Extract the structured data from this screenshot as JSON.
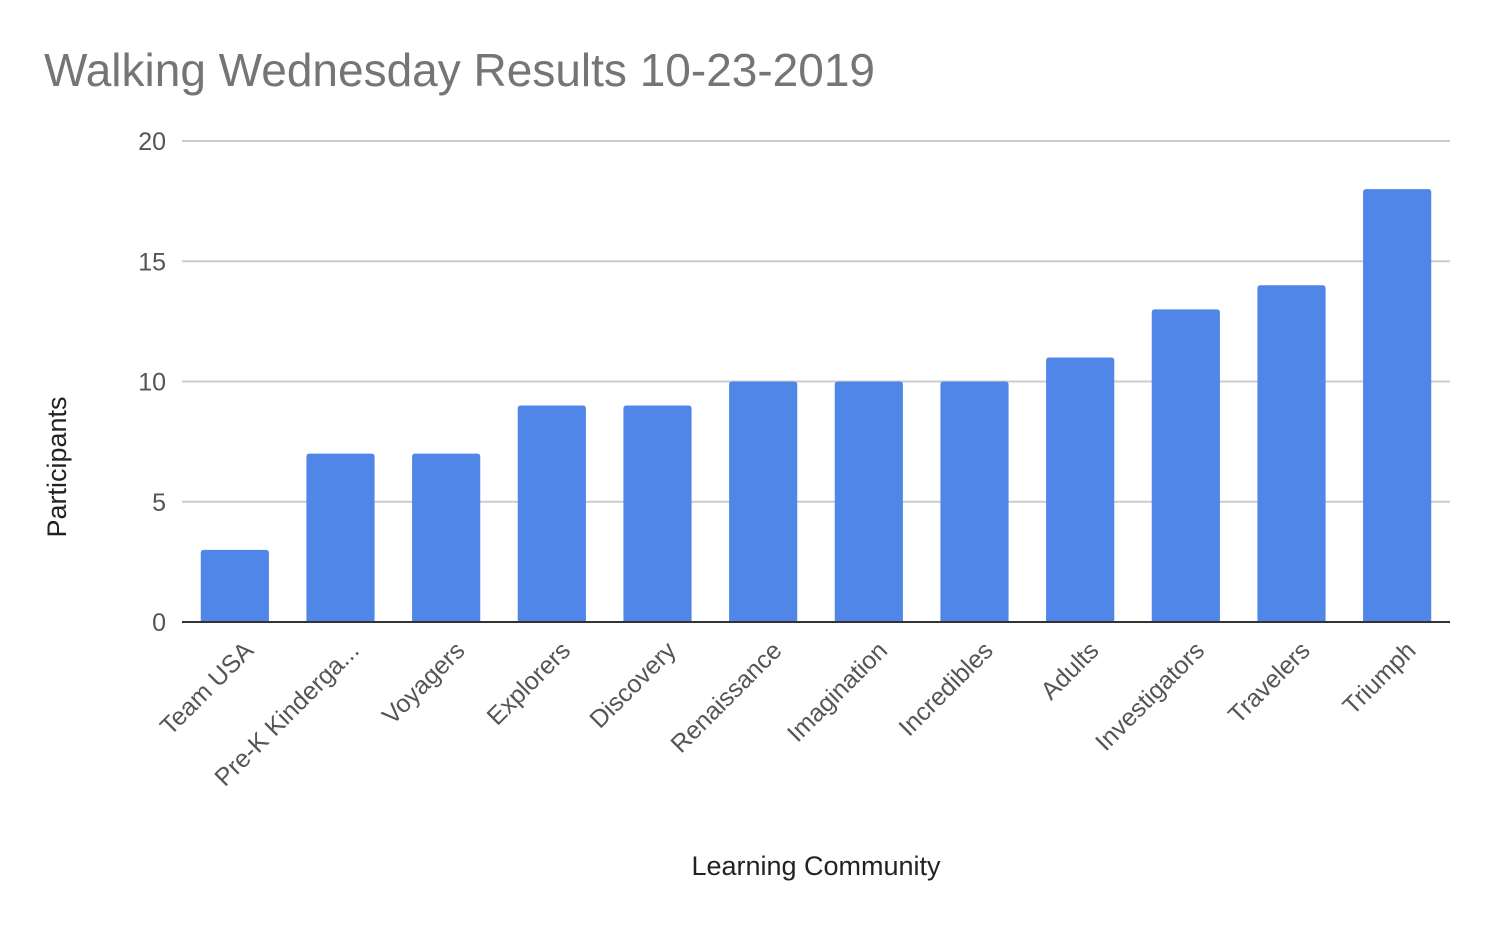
{
  "chart_data": {
    "type": "bar",
    "title": "Walking Wednesday Results 10-23-2019",
    "xlabel": "Learning Community",
    "ylabel": "Participants",
    "categories": [
      "Team USA",
      "Pre-K Kinderga...",
      "Voyagers",
      "Explorers",
      "Discovery",
      "Renaissance",
      "Imagination",
      "Incredibles",
      "Adults",
      "Investigators",
      "Travelers",
      "Triumph"
    ],
    "series": [
      {
        "values": [
          3,
          7,
          7,
          9,
          9,
          10,
          10,
          10,
          11,
          13,
          14,
          18
        ]
      }
    ],
    "ylim": [
      0,
      20
    ],
    "yticks": [
      0,
      5,
      10,
      15,
      20
    ],
    "grid": true,
    "legend": "none",
    "colors": {
      "bar": "#4f86e8",
      "grid": "#cccccc",
      "baseline": "#333333",
      "title": "#757575",
      "tick_text": "#555555",
      "axis_title": "#222222"
    }
  }
}
